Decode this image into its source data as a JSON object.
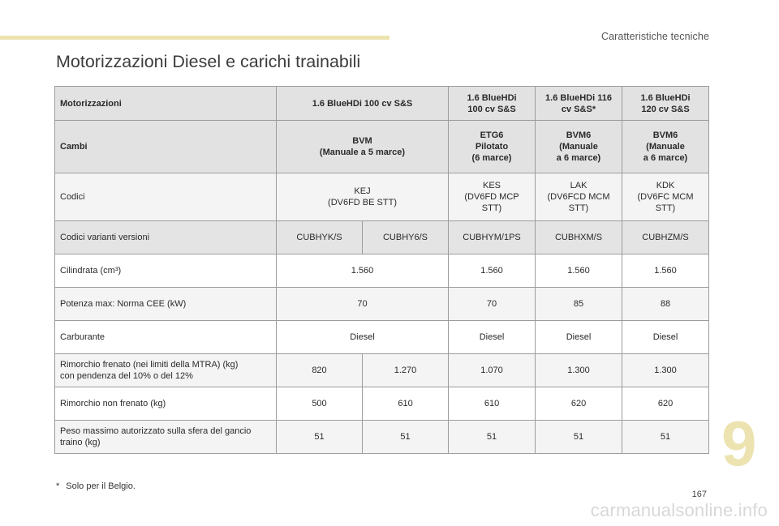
{
  "section_header": "Caratteristiche tecniche",
  "page_title": "Motorizzazioni Diesel e carichi trainabili",
  "table": {
    "header": {
      "label": "Motorizzazioni",
      "cols": [
        "1.6 BlueHDi 100 cv S&S",
        "1.6 BlueHDi\n100 cv S&S",
        "1.6 BlueHDi 116\ncv S&S*",
        "1.6 BlueHDi\n120 cv S&S"
      ]
    },
    "cambi": {
      "label": "Cambi",
      "cols": [
        "BVM\n(Manuale a 5 marce)",
        "ETG6\nPilotato\n(6 marce)",
        "BVM6\n(Manuale\na 6 marce)",
        "BVM6\n(Manuale\na 6 marce)"
      ]
    },
    "codici": {
      "label": "Codici",
      "cols": [
        "KEJ\n(DV6FD BE STT)",
        "KES\n(DV6FD MCP\nSTT)",
        "LAK\n(DV6FCD MCM\nSTT)",
        "KDK\n(DV6FC MCM\nSTT)"
      ]
    },
    "varianti": {
      "label": "Codici varianti versioni",
      "cols": [
        "CUBHYK/S",
        "CUBHY6/S",
        "CUBHYM/1PS",
        "CUBHXM/S",
        "CUBHZM/S"
      ]
    },
    "cilindrata": {
      "label": "Cilindrata (cm³)",
      "cols": [
        "1.560",
        "1.560",
        "1.560",
        "1.560"
      ]
    },
    "potenza": {
      "label": "Potenza max: Norma CEE (kW)",
      "cols": [
        "70",
        "70",
        "85",
        "88"
      ]
    },
    "carburante": {
      "label": "Carburante",
      "cols": [
        "Diesel",
        "Diesel",
        "Diesel",
        "Diesel"
      ]
    },
    "rimorchio_frenato": {
      "label": "Rimorchio frenato (nei limiti della MTRA) (kg)\ncon pendenza del 10% o del 12%",
      "cols": [
        "820",
        "1.270",
        "1.070",
        "1.300",
        "1.300"
      ]
    },
    "rimorchio_non_frenato": {
      "label": "Rimorchio non frenato (kg)",
      "cols": [
        "500",
        "610",
        "610",
        "620",
        "620"
      ]
    },
    "peso_gancio": {
      "label": "Peso massimo autorizzato sulla sfera del gancio\ntraino (kg)",
      "cols": [
        "51",
        "51",
        "51",
        "51",
        "51"
      ]
    }
  },
  "footnote": {
    "mark": "*",
    "text": "Solo per il Belgio."
  },
  "chapter_number": "9",
  "page_number": "167",
  "watermark": "carmanualsonline.info",
  "colors": {
    "accent": "#ece3b0",
    "header_bg": "#e2e2e2",
    "border": "#9c9c9c"
  }
}
